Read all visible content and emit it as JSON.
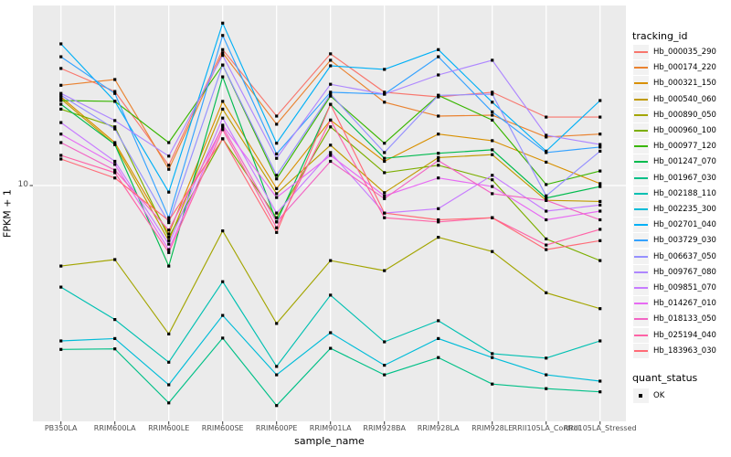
{
  "axes": {
    "y_label": "FPKM + 1",
    "x_label": "sample_name",
    "y_tick_label": "10"
  },
  "legend": {
    "tracking_title": "tracking_id",
    "quant_title": "quant_status",
    "quant_ok_label": "OK"
  },
  "style_colors": {
    "panel_bg": "#EBEBEB",
    "grid": "#FFFFFF",
    "axis_text": "#4D4D4D",
    "marker": "#000000",
    "legend_key_bg": "#F2F2F2"
  },
  "chart_data": {
    "type": "line",
    "title": "",
    "xlabel": "sample_name",
    "ylabel": "FPKM + 1",
    "y_scale": "log10",
    "y_breaks": [
      10
    ],
    "ylim": [
      1,
      64
    ],
    "grid": "major-white-on-gray",
    "legend_position": "right",
    "marker": "black-square",
    "quant_status": "OK",
    "categories": [
      "PB350LA",
      "RRIM600LA",
      "RRIM600LE",
      "RRIM600SE",
      "RRIM600PE",
      "RRIM901LA",
      "RRIM928BA",
      "RRIM928LA",
      "RRIM928LE",
      "RRII105LA_Control",
      "RRII105LA_Stressed"
    ],
    "series": [
      {
        "name": "Hb_000035_290",
        "color": "#F8766D",
        "values": [
          33.0,
          26.1,
          12.3,
          40.0,
          20.3,
          38.3,
          25.9,
          24.7,
          25.9,
          20.1,
          20.1
        ]
      },
      {
        "name": "Hb_000174_220",
        "color": "#EA8331",
        "values": [
          27.8,
          29.5,
          11.8,
          38.7,
          18.7,
          35.9,
          23.4,
          20.3,
          20.5,
          16.4,
          16.9
        ]
      },
      {
        "name": "Hb_000321_150",
        "color": "#D89000",
        "values": [
          24.7,
          15.5,
          6.1,
          23.6,
          9.7,
          19.5,
          12.8,
          16.9,
          15.8,
          12.7,
          10.2
        ]
      },
      {
        "name": "Hb_000540_060",
        "color": "#C09B00",
        "values": [
          24.2,
          15.2,
          5.7,
          21.8,
          9.2,
          15.1,
          9.3,
          13.3,
          13.7,
          8.6,
          8.5
        ]
      },
      {
        "name": "Hb_000890_050",
        "color": "#A3A500",
        "values": [
          4.4,
          4.7,
          2.2,
          6.3,
          2.45,
          4.65,
          4.2,
          5.9,
          5.1,
          3.35,
          2.85
        ]
      },
      {
        "name": "Hb_000960_100",
        "color": "#7CAE00",
        "values": [
          21.8,
          18.2,
          5.9,
          16.1,
          7.2,
          18.2,
          11.4,
          12.3,
          10.6,
          5.8,
          4.65
        ]
      },
      {
        "name": "Hb_000977_120",
        "color": "#39B600",
        "values": [
          23.8,
          23.6,
          15.5,
          34.2,
          10.7,
          24.9,
          15.4,
          25.1,
          19.5,
          10.1,
          11.6
        ]
      },
      {
        "name": "Hb_001247_070",
        "color": "#00BB4E",
        "values": [
          22.9,
          15.2,
          4.4,
          30.3,
          6.9,
          22.9,
          13.2,
          13.9,
          14.4,
          8.8,
          9.9
        ]
      },
      {
        "name": "Hb_001967_030",
        "color": "#00C087",
        "values": [
          1.88,
          1.89,
          1.09,
          2.11,
          1.06,
          1.9,
          1.45,
          1.73,
          1.32,
          1.26,
          1.22
        ]
      },
      {
        "name": "Hb_002188_110",
        "color": "#00C0B2",
        "values": [
          3.55,
          2.55,
          1.65,
          3.75,
          1.58,
          3.27,
          2.03,
          2.52,
          1.8,
          1.72,
          2.05
        ]
      },
      {
        "name": "Hb_002235_300",
        "color": "#00BCD8",
        "values": [
          2.05,
          2.1,
          1.31,
          2.66,
          1.45,
          2.23,
          1.6,
          2.1,
          1.73,
          1.45,
          1.36
        ]
      },
      {
        "name": "Hb_002701_040",
        "color": "#00B0F6",
        "values": [
          42.4,
          23.6,
          9.35,
          52.4,
          15.4,
          33.9,
          32.7,
          40.0,
          23.4,
          14.2,
          23.8
        ]
      },
      {
        "name": "Hb_003729_030",
        "color": "#35A2FF",
        "values": [
          37.2,
          25.6,
          7.2,
          46.2,
          13.8,
          25.9,
          25.4,
          37.2,
          21.2,
          14.0,
          14.8
        ]
      },
      {
        "name": "Hb_006637_050",
        "color": "#9590FF",
        "values": [
          25.1,
          17.8,
          6.85,
          34.2,
          11.1,
          25.4,
          14.0,
          25.1,
          25.4,
          9.0,
          14.2
        ]
      },
      {
        "name": "Hb_009767_080",
        "color": "#AE87FF",
        "values": [
          25.6,
          19.4,
          13.5,
          37.7,
          13.2,
          28.1,
          25.4,
          30.9,
          35.9,
          16.7,
          15.2
        ]
      },
      {
        "name": "Hb_009851_070",
        "color": "#C77CFF",
        "values": [
          19.0,
          12.8,
          5.5,
          19.9,
          7.55,
          14.0,
          7.55,
          7.9,
          11.1,
          7.7,
          8.2
        ]
      },
      {
        "name": "Hb_014267_010",
        "color": "#E76BF3",
        "values": [
          16.9,
          12.4,
          5.2,
          18.5,
          8.85,
          13.6,
          9.0,
          10.8,
          9.9,
          7.05,
          7.7
        ]
      },
      {
        "name": "Hb_018133_050",
        "color": "#F265C4",
        "values": [
          15.5,
          11.7,
          6.35,
          18.2,
          6.9,
          12.8,
          8.75,
          12.9,
          9.2,
          8.6,
          7.05
        ]
      },
      {
        "name": "Hb_025194_040",
        "color": "#FF63A6",
        "values": [
          13.6,
          11.4,
          5.05,
          17.7,
          6.5,
          19.5,
          7.2,
          6.9,
          7.2,
          5.45,
          6.4
        ]
      },
      {
        "name": "Hb_183963_030",
        "color": "#FF6B77",
        "values": [
          13.1,
          10.8,
          7.0,
          16.1,
          6.2,
          22.9,
          7.55,
          7.05,
          7.2,
          5.2,
          5.7
        ]
      }
    ]
  }
}
